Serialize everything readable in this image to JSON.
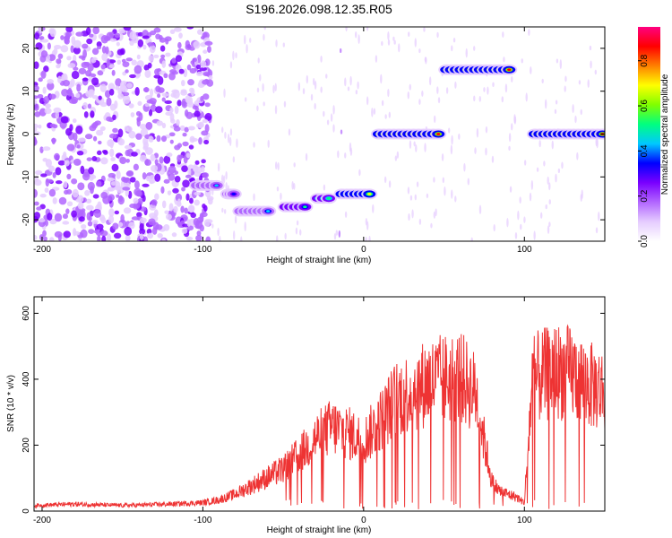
{
  "title": "S196.2026.098.12.35.R05",
  "chart_data": [
    {
      "type": "heatmap",
      "xlabel": "Height of straight line (km)",
      "ylabel": "Frequency (Hz)",
      "xlim": [
        -205,
        150
      ],
      "ylim": [
        -25,
        25
      ],
      "xticks": [
        -200,
        -100,
        0,
        100
      ],
      "yticks": [
        -20,
        -10,
        0,
        10,
        20
      ],
      "colorbar": {
        "label": "Normalized spectral amplitude",
        "ticks": [
          "0.0",
          "0.2",
          "0.4",
          "0.6",
          "0.8"
        ],
        "range": [
          0,
          0.95
        ],
        "colors": [
          "#ffffff",
          "#e5ccff",
          "#b266ff",
          "#7a00ff",
          "#0000ff",
          "#00c8ff",
          "#00ff80",
          "#80ff00",
          "#ffff00",
          "#ff8000",
          "#ff0000",
          "#ff0080"
        ]
      },
      "noise_region": [
        -205,
        -95
      ],
      "tones": [
        {
          "x": [
            -105,
            -90
          ],
          "y": -12,
          "amp": 0.4
        },
        {
          "x": [
            -85,
            -80
          ],
          "y": -14,
          "amp": 0.35
        },
        {
          "x": [
            -78,
            -58
          ],
          "y": -18,
          "amp": 0.45
        },
        {
          "x": [
            -50,
            -35
          ],
          "y": -17,
          "amp": 0.5
        },
        {
          "x": [
            -30,
            -20
          ],
          "y": -15,
          "amp": 0.55
        },
        {
          "x": [
            -15,
            5
          ],
          "y": -14,
          "amp": 0.7
        },
        {
          "x": [
            8,
            48
          ],
          "y": 0,
          "amp": 0.85
        },
        {
          "x": [
            50,
            92
          ],
          "y": 15,
          "amp": 0.85
        },
        {
          "x": [
            105,
            150
          ],
          "y": 0,
          "amp": 0.85
        }
      ]
    },
    {
      "type": "line",
      "xlabel": "Height of straight line (km)",
      "ylabel": "SNR (10 * v/v)",
      "xlim": [
        -205,
        150
      ],
      "ylim": [
        0,
        650
      ],
      "xticks": [
        -200,
        -100,
        0,
        100
      ],
      "yticks": [
        0,
        200,
        400,
        600
      ],
      "color": "#ee3333",
      "series": [
        {
          "x": [
            -205,
            -180,
            -150,
            -120,
            -100,
            -90,
            -80,
            -70,
            -60,
            -50,
            -40,
            -30,
            -20,
            -10,
            0,
            10,
            20,
            30,
            40,
            50,
            60,
            70,
            75,
            80,
            85,
            90,
            95,
            100,
            105,
            110,
            120,
            130,
            140,
            150
          ],
          "values": [
            20,
            25,
            20,
            25,
            30,
            40,
            60,
            90,
            120,
            150,
            200,
            260,
            300,
            280,
            250,
            320,
            400,
            430,
            460,
            470,
            480,
            420,
            250,
            100,
            70,
            60,
            50,
            30,
            470,
            480,
            500,
            490,
            450,
            430
          ]
        }
      ]
    }
  ]
}
